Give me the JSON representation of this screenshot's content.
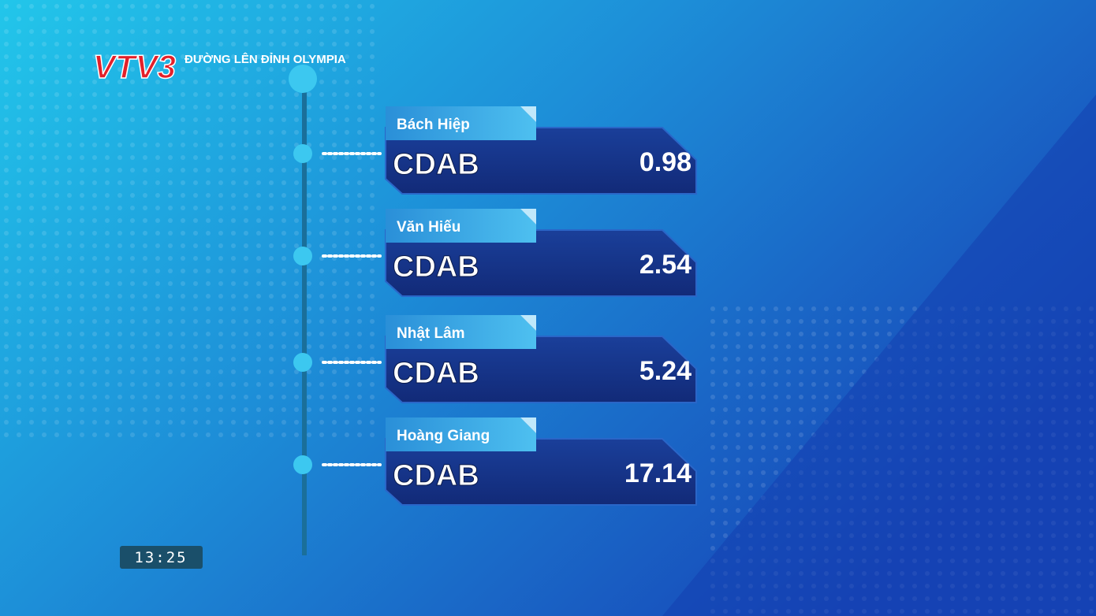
{
  "header": {
    "logo": "VTV3",
    "program": "ĐƯỜNG LÊN ĐỈNH OLYMPIA"
  },
  "clock": "13:25",
  "contestants": [
    {
      "name": "Bách Hiệp",
      "answer": "CDAB",
      "time": 0.98
    },
    {
      "name": "Văn Hiếu",
      "answer": "CDAB",
      "time": 2.54
    },
    {
      "name": "Nhật Lâm",
      "answer": "CDAB",
      "time": 5.24
    },
    {
      "name": "Hoàng Giang",
      "answer": "CDAB",
      "time": 17.14
    }
  ]
}
